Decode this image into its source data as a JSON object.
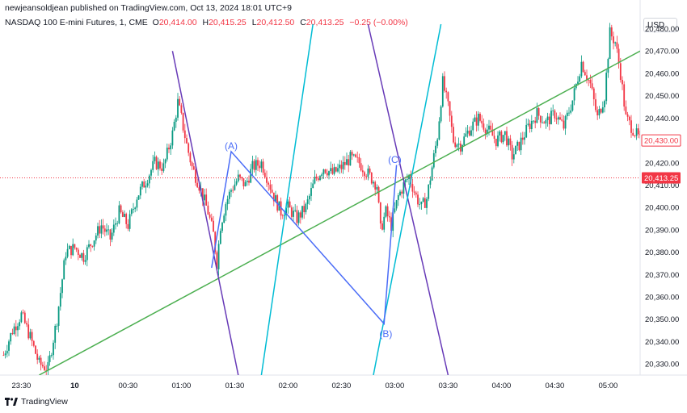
{
  "header": {
    "publish_line": "newjeansoldjean published on TradingView.com, Oct 13, 2024 18:01 UTC+9",
    "symbol": "NASDAQ 100 E-mini Futures, 1, CME",
    "o_label": "O",
    "o_value": "20,414.00",
    "h_label": "H",
    "h_value": "20,415.25",
    "l_label": "L",
    "l_value": "20,412.50",
    "c_label": "C",
    "c_value": "20,413.25",
    "change": "−0.25 (−0.00%)"
  },
  "currency_button": "USD",
  "footer": {
    "brand": "TradingView"
  },
  "colors": {
    "up": "#089981",
    "down": "#f23645",
    "green_line": "#4caf50",
    "purple": "#673ab7",
    "cyan": "#00bcd4",
    "blue": "#2962ff"
  },
  "chart_data": {
    "type": "candlestick",
    "ylim": [
      20325,
      20482
    ],
    "y_ticks": [
      "20,330.00",
      "20,340.00",
      "20,350.00",
      "20,360.00",
      "20,370.00",
      "20,380.00",
      "20,390.00",
      "20,400.00",
      "20,410.00",
      "20,420.00",
      "20,430.00",
      "20,440.00",
      "20,450.00",
      "20,460.00",
      "20,470.00",
      "20,480.00"
    ],
    "y_tick_values": [
      20330,
      20340,
      20350,
      20360,
      20370,
      20380,
      20390,
      20400,
      20410,
      20420,
      20430,
      20440,
      20450,
      20460,
      20470,
      20480
    ],
    "x_ticks": [
      "23:30",
      "10",
      "00:30",
      "01:00",
      "01:30",
      "02:00",
      "02:30",
      "03:00",
      "03:30",
      "04:00",
      "04:30",
      "05:00"
    ],
    "x_tick_minutes": [
      -30,
      0,
      30,
      60,
      90,
      120,
      150,
      180,
      210,
      240,
      270,
      300
    ],
    "x_range_minutes": [
      -42,
      318
    ],
    "last_price_label": "20,413.25",
    "last_price": 20413.25,
    "marked_price_label": "20,430.00",
    "marked_price": 20430.0,
    "wave_labels": [
      {
        "text": "(A)",
        "t": 88,
        "p": 20426
      },
      {
        "text": "(B)",
        "t": 175,
        "p": 20342
      },
      {
        "text": "(C)",
        "t": 180,
        "p": 20420
      }
    ],
    "path_points": [
      [
        -40,
        20334
      ],
      [
        -35,
        20345
      ],
      [
        -30,
        20352
      ],
      [
        -25,
        20342
      ],
      [
        -20,
        20330
      ],
      [
        -15,
        20328
      ],
      [
        -10,
        20350
      ],
      [
        -5,
        20380
      ],
      [
        0,
        20382
      ],
      [
        5,
        20378
      ],
      [
        10,
        20385
      ],
      [
        15,
        20392
      ],
      [
        20,
        20386
      ],
      [
        25,
        20398
      ],
      [
        30,
        20392
      ],
      [
        35,
        20405
      ],
      [
        40,
        20412
      ],
      [
        45,
        20420
      ],
      [
        50,
        20418
      ],
      [
        55,
        20433
      ],
      [
        58,
        20447
      ],
      [
        60,
        20440
      ],
      [
        63,
        20428
      ],
      [
        66,
        20418
      ],
      [
        70,
        20410
      ],
      [
        75,
        20398
      ],
      [
        78,
        20388
      ],
      [
        80,
        20375
      ],
      [
        82,
        20392
      ],
      [
        85,
        20402
      ],
      [
        88,
        20408
      ],
      [
        92,
        20413
      ],
      [
        96,
        20410
      ],
      [
        100,
        20418
      ],
      [
        105,
        20420
      ],
      [
        108,
        20414
      ],
      [
        112,
        20405
      ],
      [
        116,
        20398
      ],
      [
        120,
        20400
      ],
      [
        125,
        20395
      ],
      [
        130,
        20400
      ],
      [
        135,
        20412
      ],
      [
        140,
        20418
      ],
      [
        145,
        20415
      ],
      [
        150,
        20418
      ],
      [
        155,
        20422
      ],
      [
        160,
        20420
      ],
      [
        165,
        20415
      ],
      [
        170,
        20410
      ],
      [
        172,
        20390
      ],
      [
        175,
        20398
      ],
      [
        178,
        20392
      ],
      [
        182,
        20405
      ],
      [
        185,
        20410
      ],
      [
        188,
        20414
      ],
      [
        192,
        20405
      ],
      [
        195,
        20400
      ],
      [
        198,
        20404
      ],
      [
        201,
        20418
      ],
      [
        204,
        20432
      ],
      [
        207,
        20456
      ],
      [
        210,
        20445
      ],
      [
        213,
        20430
      ],
      [
        217,
        20428
      ],
      [
        222,
        20435
      ],
      [
        227,
        20440
      ],
      [
        232,
        20435
      ],
      [
        237,
        20430
      ],
      [
        242,
        20433
      ],
      [
        246,
        20423
      ],
      [
        250,
        20428
      ],
      [
        255,
        20436
      ],
      [
        260,
        20442
      ],
      [
        265,
        20438
      ],
      [
        270,
        20442
      ],
      [
        275,
        20436
      ],
      [
        280,
        20448
      ],
      [
        285,
        20465
      ],
      [
        290,
        20455
      ],
      [
        294,
        20440
      ],
      [
        298,
        20450
      ],
      [
        301,
        20478
      ],
      [
        304,
        20474
      ],
      [
        307,
        20460
      ],
      [
        310,
        20440
      ],
      [
        314,
        20435
      ],
      [
        318,
        20430
      ]
    ],
    "trend_lines": [
      {
        "color": "green",
        "t1": -20,
        "p1": 20325,
        "t2": 318,
        "p2": 20470
      },
      {
        "color": "purple",
        "t1": 55,
        "p1": 20470,
        "t2": 92,
        "p2": 20325
      },
      {
        "color": "purple",
        "t1": 165,
        "p1": 20482,
        "t2": 210,
        "p2": 20325
      },
      {
        "color": "cyan",
        "t1": 105,
        "p1": 20325,
        "t2": 134,
        "p2": 20482
      },
      {
        "color": "cyan",
        "t1": 168,
        "p1": 20325,
        "t2": 206,
        "p2": 20482
      }
    ],
    "wave_lines": [
      [
        77,
        20373
      ],
      [
        88,
        20425
      ],
      [
        174,
        20348
      ],
      [
        181,
        20419
      ]
    ]
  }
}
